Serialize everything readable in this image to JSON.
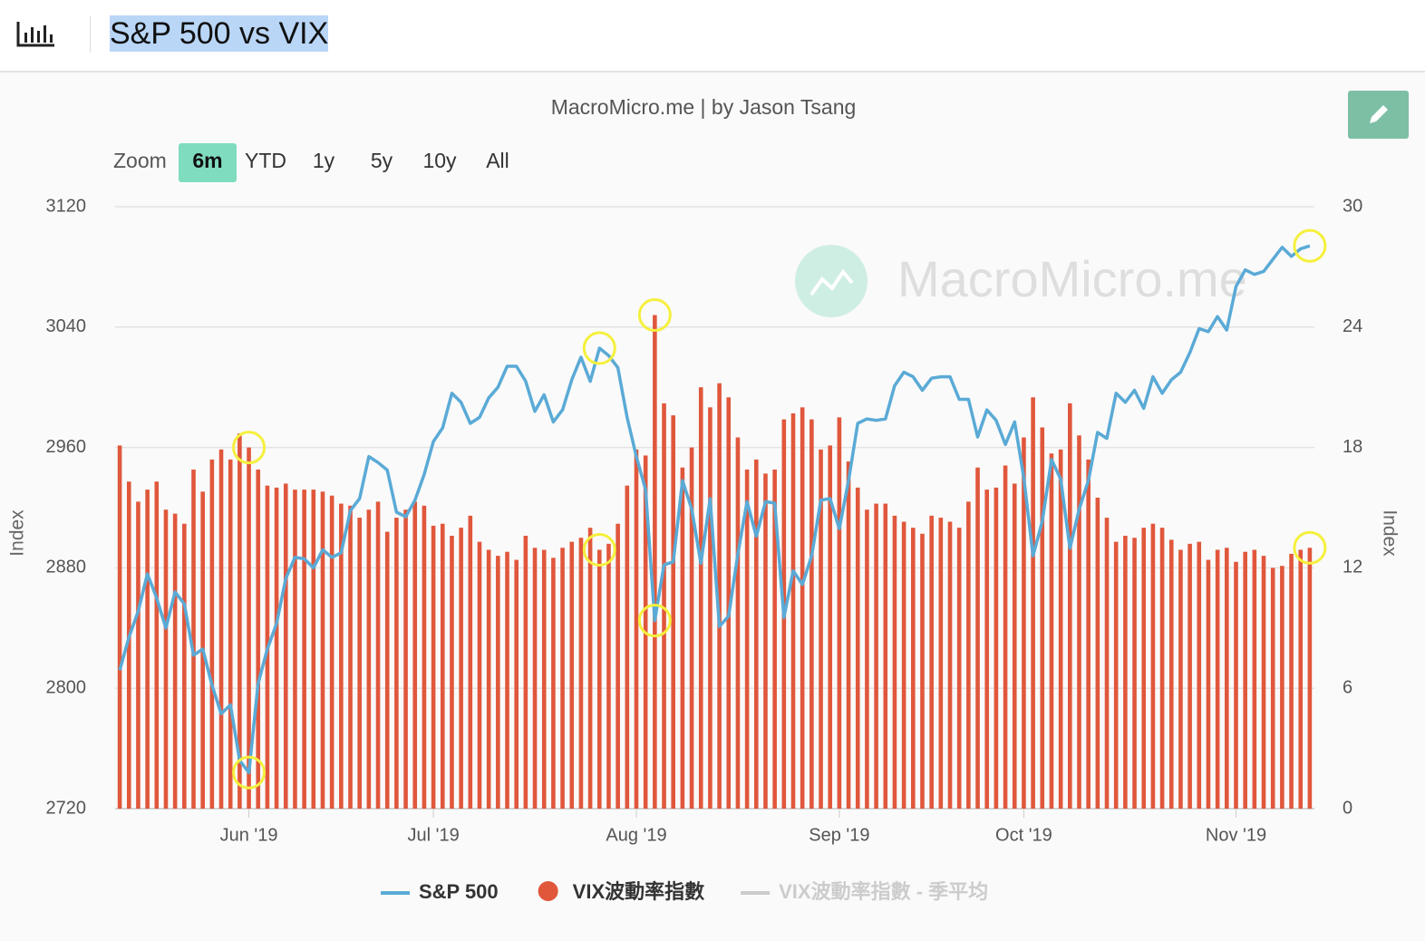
{
  "header": {
    "title": "S&P 500 vs VIX"
  },
  "chart_data": {
    "type": "bar-line",
    "subtitle": "MacroMicro.me | by Jason Tsang",
    "watermark": "MacroMicro.me",
    "zoom": {
      "label": "Zoom",
      "buttons": [
        "6m",
        "YTD",
        "1y",
        "5y",
        "10y",
        "All"
      ],
      "active": 0
    },
    "y_label": "Index",
    "y2_label": "Index",
    "categories": [
      null,
      null,
      null,
      null,
      null,
      null,
      null,
      null,
      null,
      null,
      null,
      null,
      null,
      null,
      "Jun '19",
      null,
      null,
      null,
      null,
      null,
      null,
      null,
      null,
      null,
      null,
      null,
      null,
      null,
      null,
      null,
      null,
      null,
      null,
      null,
      "Jul '19",
      null,
      null,
      null,
      null,
      null,
      null,
      null,
      null,
      null,
      null,
      null,
      null,
      null,
      null,
      null,
      null,
      null,
      null,
      null,
      null,
      null,
      "Aug '19",
      null,
      null,
      null,
      null,
      null,
      null,
      null,
      null,
      null,
      null,
      null,
      null,
      null,
      null,
      null,
      null,
      null,
      null,
      null,
      null,
      null,
      "Sep '19",
      null,
      null,
      null,
      null,
      null,
      null,
      null,
      null,
      null,
      null,
      null,
      null,
      null,
      null,
      null,
      null,
      null,
      null,
      null,
      "Oct '19",
      null,
      null,
      null,
      null,
      null,
      null,
      null,
      null,
      null,
      null,
      null,
      null,
      null,
      null,
      null,
      null,
      null,
      null,
      null,
      null,
      null,
      null,
      "Nov '19",
      null,
      null,
      null,
      null,
      null,
      null,
      null,
      null
    ],
    "series": [
      {
        "name": "S&P 500",
        "color": "#5aaad6",
        "kind": "line",
        "axis": "y",
        "values": [
          2812,
          2834,
          2851,
          2876,
          2860,
          2840,
          2864,
          2856,
          2822,
          2826,
          2802,
          2783,
          2789,
          2752,
          2744,
          2803,
          2826,
          2843,
          2873,
          2887,
          2886,
          2880,
          2892,
          2887,
          2890,
          2918,
          2926,
          2954,
          2950,
          2945,
          2917,
          2914,
          2925,
          2942,
          2964,
          2973,
          2996,
          2990,
          2976,
          2980,
          2993,
          3000,
          3014,
          3014,
          3004,
          2984,
          2995,
          2977,
          2985,
          3005,
          3020,
          3004,
          3026,
          3021,
          3013,
          2980,
          2954,
          2932,
          2845,
          2882,
          2884,
          2938,
          2919,
          2883,
          2926,
          2841,
          2848,
          2889,
          2924,
          2901,
          2924,
          2923,
          2847,
          2878,
          2869,
          2888,
          2925,
          2926,
          2906,
          2938,
          2976,
          2979,
          2978,
          2979,
          3001,
          3010,
          3007,
          2998,
          3006,
          3007,
          3007,
          2992,
          2992,
          2967,
          2985,
          2978,
          2962,
          2977,
          2940,
          2888,
          2911,
          2952,
          2939,
          2893,
          2919,
          2938,
          2970,
          2966,
          2996,
          2990,
          2998,
          2986,
          3007,
          2996,
          3005,
          3010,
          3023,
          3039,
          3037,
          3047,
          3038,
          3067,
          3078,
          3075,
          3077,
          3085,
          3093,
          3087,
          3092,
          3094
        ]
      },
      {
        "name": "VIX波動率指數",
        "color": "#e0573c",
        "kind": "bar",
        "axis": "y2",
        "values": [
          18.1,
          16.3,
          15.3,
          15.9,
          16.3,
          14.9,
          14.7,
          14.2,
          16.9,
          15.8,
          17.4,
          17.9,
          17.4,
          18.7,
          18.0,
          16.9,
          16.1,
          16.0,
          16.2,
          15.9,
          15.9,
          15.9,
          15.8,
          15.6,
          15.2,
          15.1,
          14.5,
          14.9,
          15.3,
          13.8,
          14.5,
          14.9,
          15.3,
          15.1,
          14.1,
          14.2,
          13.6,
          14.0,
          14.6,
          13.3,
          12.9,
          12.6,
          12.8,
          12.4,
          13.6,
          13.0,
          12.9,
          12.5,
          13.0,
          13.3,
          13.5,
          14.0,
          12.9,
          13.2,
          14.2,
          16.1,
          17.9,
          17.6,
          24.6,
          20.2,
          19.6,
          17.0,
          18.0,
          21.0,
          20.0,
          21.2,
          20.5,
          18.5,
          16.9,
          17.4,
          16.7,
          16.9,
          19.4,
          19.7,
          20.0,
          19.4,
          17.9,
          18.1,
          19.5,
          17.3,
          16.0,
          14.9,
          15.2,
          15.2,
          14.6,
          14.3,
          14.0,
          13.7,
          14.6,
          14.5,
          14.3,
          14.0,
          15.3,
          17.0,
          15.9,
          16.0,
          17.1,
          16.2,
          18.5,
          20.5,
          19.0,
          17.7,
          17.9,
          20.2,
          18.6,
          17.4,
          15.5,
          14.5,
          13.3,
          13.6,
          13.5,
          14.0,
          14.2,
          14.0,
          13.4,
          12.9,
          13.2,
          13.3,
          12.4,
          12.9,
          13.0,
          12.3,
          12.8,
          12.9,
          12.6,
          12.0,
          12.1,
          12.7,
          12.9,
          13.0
        ]
      },
      {
        "name": "VIX波動率指數 - 季平均",
        "color": "#cccccc",
        "kind": "line",
        "axis": "y2",
        "hidden": true
      }
    ],
    "ylim": [
      2720,
      3120
    ],
    "yticks": [
      2720,
      2800,
      2880,
      2960,
      3040,
      3120
    ],
    "y2lim": [
      0,
      30
    ],
    "y2ticks": [
      0,
      6,
      12,
      18,
      24,
      30
    ],
    "grid": true
  }
}
